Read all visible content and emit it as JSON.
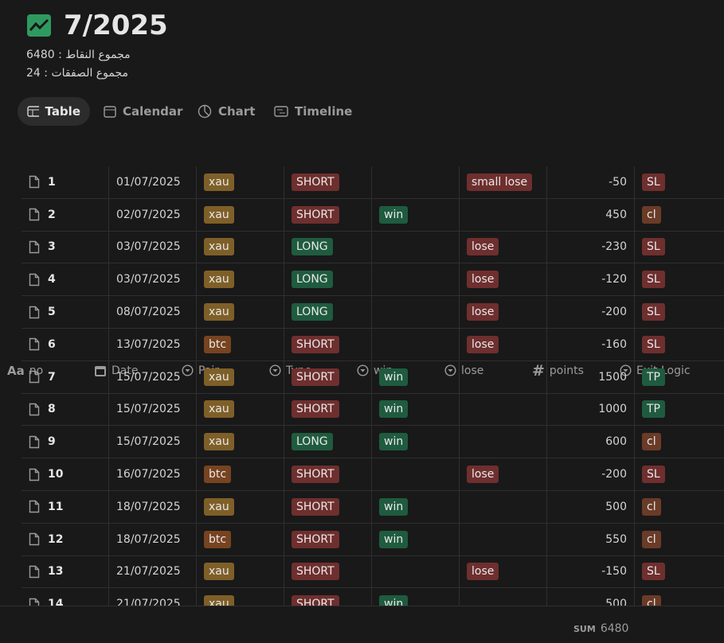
{
  "header": {
    "title": "7/2025",
    "lines": [
      "مجموع النقاط : 6480",
      "مجموع الصفقات : 24"
    ]
  },
  "tabs": [
    "Table",
    "Calendar",
    "Chart",
    "Timeline"
  ],
  "table": {
    "columns": [
      {
        "icon": "Aa",
        "label": "no"
      },
      {
        "label": "Date"
      },
      {
        "label": "Pair"
      },
      {
        "label": "Type"
      },
      {
        "label": "win"
      },
      {
        "label": "lose"
      },
      {
        "icon": "#",
        "label": "points"
      },
      {
        "label": "Exit Logic"
      }
    ],
    "rows": [
      {
        "no": 1,
        "date": "01/07/2025",
        "pair": {
          "label": "xau",
          "color": "#7f5f28"
        },
        "type": {
          "label": "SHORT",
          "color": "#6e2f2e"
        },
        "win": null,
        "lose": {
          "label": "small lose",
          "color": "#6e2f2e"
        },
        "points": -50,
        "exit": {
          "label": "SL",
          "color": "#6e2f2e"
        }
      },
      {
        "no": 2,
        "date": "02/07/2025",
        "pair": {
          "label": "xau",
          "color": "#7f5f28"
        },
        "type": {
          "label": "SHORT",
          "color": "#6e2f2e"
        },
        "win": {
          "label": "win",
          "color": "#1f5b3f"
        },
        "lose": null,
        "points": 450,
        "exit": {
          "label": "cl",
          "color": "#6a3b27"
        }
      },
      {
        "no": 3,
        "date": "03/07/2025",
        "pair": {
          "label": "xau",
          "color": "#7f5f28"
        },
        "type": {
          "label": "LONG",
          "color": "#1f5b3f"
        },
        "win": null,
        "lose": {
          "label": "lose",
          "color": "#6e2f2e"
        },
        "points": -230,
        "exit": {
          "label": "SL",
          "color": "#6e2f2e"
        }
      },
      {
        "no": 4,
        "date": "03/07/2025",
        "pair": {
          "label": "xau",
          "color": "#7f5f28"
        },
        "type": {
          "label": "LONG",
          "color": "#1f5b3f"
        },
        "win": null,
        "lose": {
          "label": "lose",
          "color": "#6e2f2e"
        },
        "points": -120,
        "exit": {
          "label": "SL",
          "color": "#6e2f2e"
        }
      },
      {
        "no": 5,
        "date": "08/07/2025",
        "pair": {
          "label": "xau",
          "color": "#7f5f28"
        },
        "type": {
          "label": "LONG",
          "color": "#1f5b3f"
        },
        "win": null,
        "lose": {
          "label": "lose",
          "color": "#6e2f2e"
        },
        "points": -200,
        "exit": {
          "label": "SL",
          "color": "#6e2f2e"
        }
      },
      {
        "no": 6,
        "date": "13/07/2025",
        "pair": {
          "label": "btc",
          "color": "#774320"
        },
        "type": {
          "label": "SHORT",
          "color": "#6e2f2e"
        },
        "win": null,
        "lose": {
          "label": "lose",
          "color": "#6e2f2e"
        },
        "points": -160,
        "exit": {
          "label": "SL",
          "color": "#6e2f2e"
        }
      },
      {
        "no": 7,
        "date": "15/07/2025",
        "pair": {
          "label": "xau",
          "color": "#7f5f28"
        },
        "type": {
          "label": "SHORT",
          "color": "#6e2f2e"
        },
        "win": {
          "label": "win",
          "color": "#1f5b3f"
        },
        "lose": null,
        "points": 1500,
        "exit": {
          "label": "TP",
          "color": "#1f5b3f"
        }
      },
      {
        "no": 8,
        "date": "15/07/2025",
        "pair": {
          "label": "xau",
          "color": "#7f5f28"
        },
        "type": {
          "label": "SHORT",
          "color": "#6e2f2e"
        },
        "win": {
          "label": "win",
          "color": "#1f5b3f"
        },
        "lose": null,
        "points": 1000,
        "exit": {
          "label": "TP",
          "color": "#1f5b3f"
        }
      },
      {
        "no": 9,
        "date": "15/07/2025",
        "pair": {
          "label": "xau",
          "color": "#7f5f28"
        },
        "type": {
          "label": "LONG",
          "color": "#1f5b3f"
        },
        "win": {
          "label": "win",
          "color": "#1f5b3f"
        },
        "lose": null,
        "points": 600,
        "exit": {
          "label": "cl",
          "color": "#6a3b27"
        }
      },
      {
        "no": 10,
        "date": "16/07/2025",
        "pair": {
          "label": "btc",
          "color": "#774320"
        },
        "type": {
          "label": "SHORT",
          "color": "#6e2f2e"
        },
        "win": null,
        "lose": {
          "label": "lose",
          "color": "#6e2f2e"
        },
        "points": -200,
        "exit": {
          "label": "SL",
          "color": "#6e2f2e"
        }
      },
      {
        "no": 11,
        "date": "18/07/2025",
        "pair": {
          "label": "xau",
          "color": "#7f5f28"
        },
        "type": {
          "label": "SHORT",
          "color": "#6e2f2e"
        },
        "win": {
          "label": "win",
          "color": "#1f5b3f"
        },
        "lose": null,
        "points": 500,
        "exit": {
          "label": "cl",
          "color": "#6a3b27"
        }
      },
      {
        "no": 12,
        "date": "18/07/2025",
        "pair": {
          "label": "btc",
          "color": "#774320"
        },
        "type": {
          "label": "SHORT",
          "color": "#6e2f2e"
        },
        "win": {
          "label": "win",
          "color": "#1f5b3f"
        },
        "lose": null,
        "points": 550,
        "exit": {
          "label": "cl",
          "color": "#6a3b27"
        }
      },
      {
        "no": 13,
        "date": "21/07/2025",
        "pair": {
          "label": "xau",
          "color": "#7f5f28"
        },
        "type": {
          "label": "SHORT",
          "color": "#6e2f2e"
        },
        "win": null,
        "lose": {
          "label": "lose",
          "color": "#6e2f2e"
        },
        "points": -150,
        "exit": {
          "label": "SL",
          "color": "#6e2f2e"
        }
      },
      {
        "no": 14,
        "date": "21/07/2025",
        "pair": {
          "label": "xau",
          "color": "#7f5f28"
        },
        "type": {
          "label": "SHORT",
          "color": "#6e2f2e"
        },
        "win": {
          "label": "win",
          "color": "#1f5b3f"
        },
        "lose": null,
        "points": 500,
        "exit": {
          "label": "cl",
          "color": "#6a3b27"
        }
      }
    ],
    "footer": {
      "label": "SUM",
      "value": 6480
    }
  }
}
